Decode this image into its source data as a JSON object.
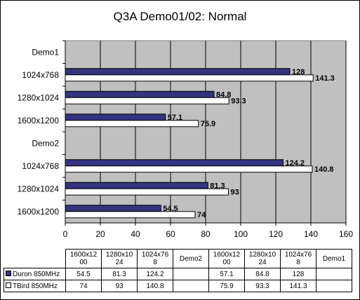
{
  "chart_data": {
    "type": "bar",
    "orientation": "horizontal",
    "title": "Q3A Demo01/02: Normal",
    "categories": [
      "Demo1",
      "1024x768",
      "1280x1024",
      "1600x1200",
      "Demo2",
      "1024x768",
      "1280x1024",
      "1600x1200"
    ],
    "series": [
      {
        "name": "Duron 850MHz",
        "color": "#33337f",
        "values": [
          null,
          128,
          84.8,
          57.1,
          null,
          124.2,
          81.3,
          54.5
        ]
      },
      {
        "name": "TBird 850MHz",
        "color": "#ffffff",
        "values": [
          null,
          141.3,
          93.3,
          75.9,
          null,
          140.8,
          93,
          74
        ]
      }
    ],
    "xlim": [
      0,
      160
    ],
    "x_ticks": [
      "0",
      "20",
      "40",
      "60",
      "80",
      "100",
      "120",
      "140",
      "160"
    ],
    "plot_background": "#c0c0c0",
    "grid": true,
    "data_table": {
      "columns": [
        "1600x12\n00",
        "1280x10\n24",
        "1024x76\n8",
        "Demo2",
        "1600x12\n00",
        "1280x10\n24",
        "1024x76\n8",
        "Demo1"
      ],
      "rows": [
        {
          "label": "Duron 850MHz",
          "cells": [
            "54.5",
            "81.3",
            "124.2",
            "",
            "57.1",
            "84.8",
            "128",
            ""
          ]
        },
        {
          "label": "TBird 850MHz",
          "cells": [
            "74",
            "93",
            "140.8",
            "",
            "75.9",
            "93.3",
            "141.3",
            ""
          ]
        }
      ]
    }
  }
}
